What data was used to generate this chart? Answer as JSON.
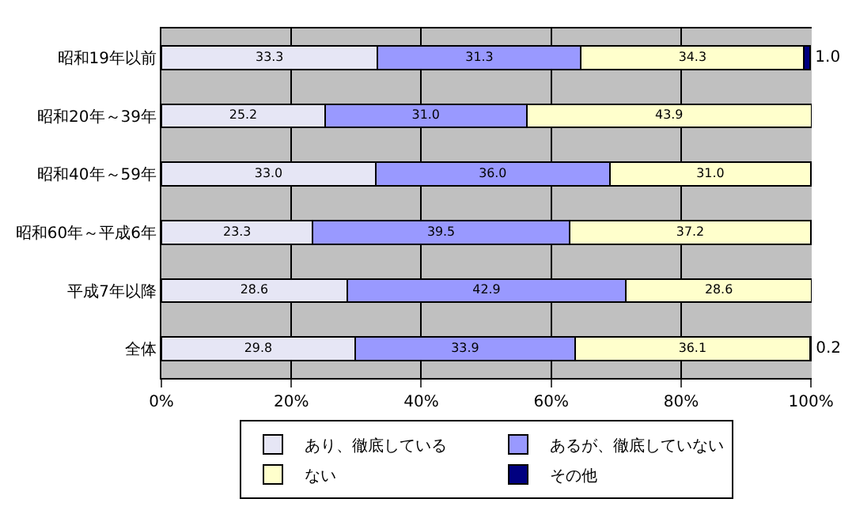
{
  "chart_data": {
    "type": "bar",
    "orientation": "horizontal",
    "stacked": true,
    "categories": [
      "昭和19年以前",
      "昭和20年～39年",
      "昭和40年～59年",
      "昭和60年～平成6年",
      "平成7年以降",
      "全体"
    ],
    "series": [
      {
        "name": "あり、徹底している",
        "color": "#e6e6f5",
        "values": [
          33.3,
          25.2,
          33.0,
          23.3,
          28.6,
          29.8
        ],
        "value_labels": [
          "33.3",
          "25.2",
          "33.0",
          "23.3",
          "28.6",
          "29.8"
        ]
      },
      {
        "name": "あるが、徹底していない",
        "color": "#9999ff",
        "values": [
          31.3,
          31.0,
          36.0,
          39.5,
          42.9,
          33.9
        ],
        "value_labels": [
          "31.3",
          "31.0",
          "36.0",
          "39.5",
          "42.9",
          "33.9"
        ]
      },
      {
        "name": "ない",
        "color": "#ffffcc",
        "values": [
          34.3,
          43.9,
          31.0,
          37.2,
          28.6,
          36.1
        ],
        "value_labels": [
          "34.3",
          "43.9",
          "31.0",
          "37.2",
          "28.6",
          "36.1"
        ]
      },
      {
        "name": "その他",
        "color": "#000080",
        "values": [
          1.0,
          null,
          null,
          null,
          null,
          0.2
        ],
        "value_labels": [
          "1.0",
          null,
          null,
          null,
          null,
          "0.2"
        ]
      }
    ],
    "xlim": [
      0,
      100.1
    ],
    "xticks": [
      {
        "value": 0,
        "label": "0%"
      },
      {
        "value": 20,
        "label": "20%"
      },
      {
        "value": 40,
        "label": "40%"
      },
      {
        "value": 60,
        "label": "60%"
      },
      {
        "value": 80,
        "label": "80%"
      },
      {
        "value": 100,
        "label": "100%"
      }
    ],
    "grid": "x",
    "legend": "bottom"
  }
}
